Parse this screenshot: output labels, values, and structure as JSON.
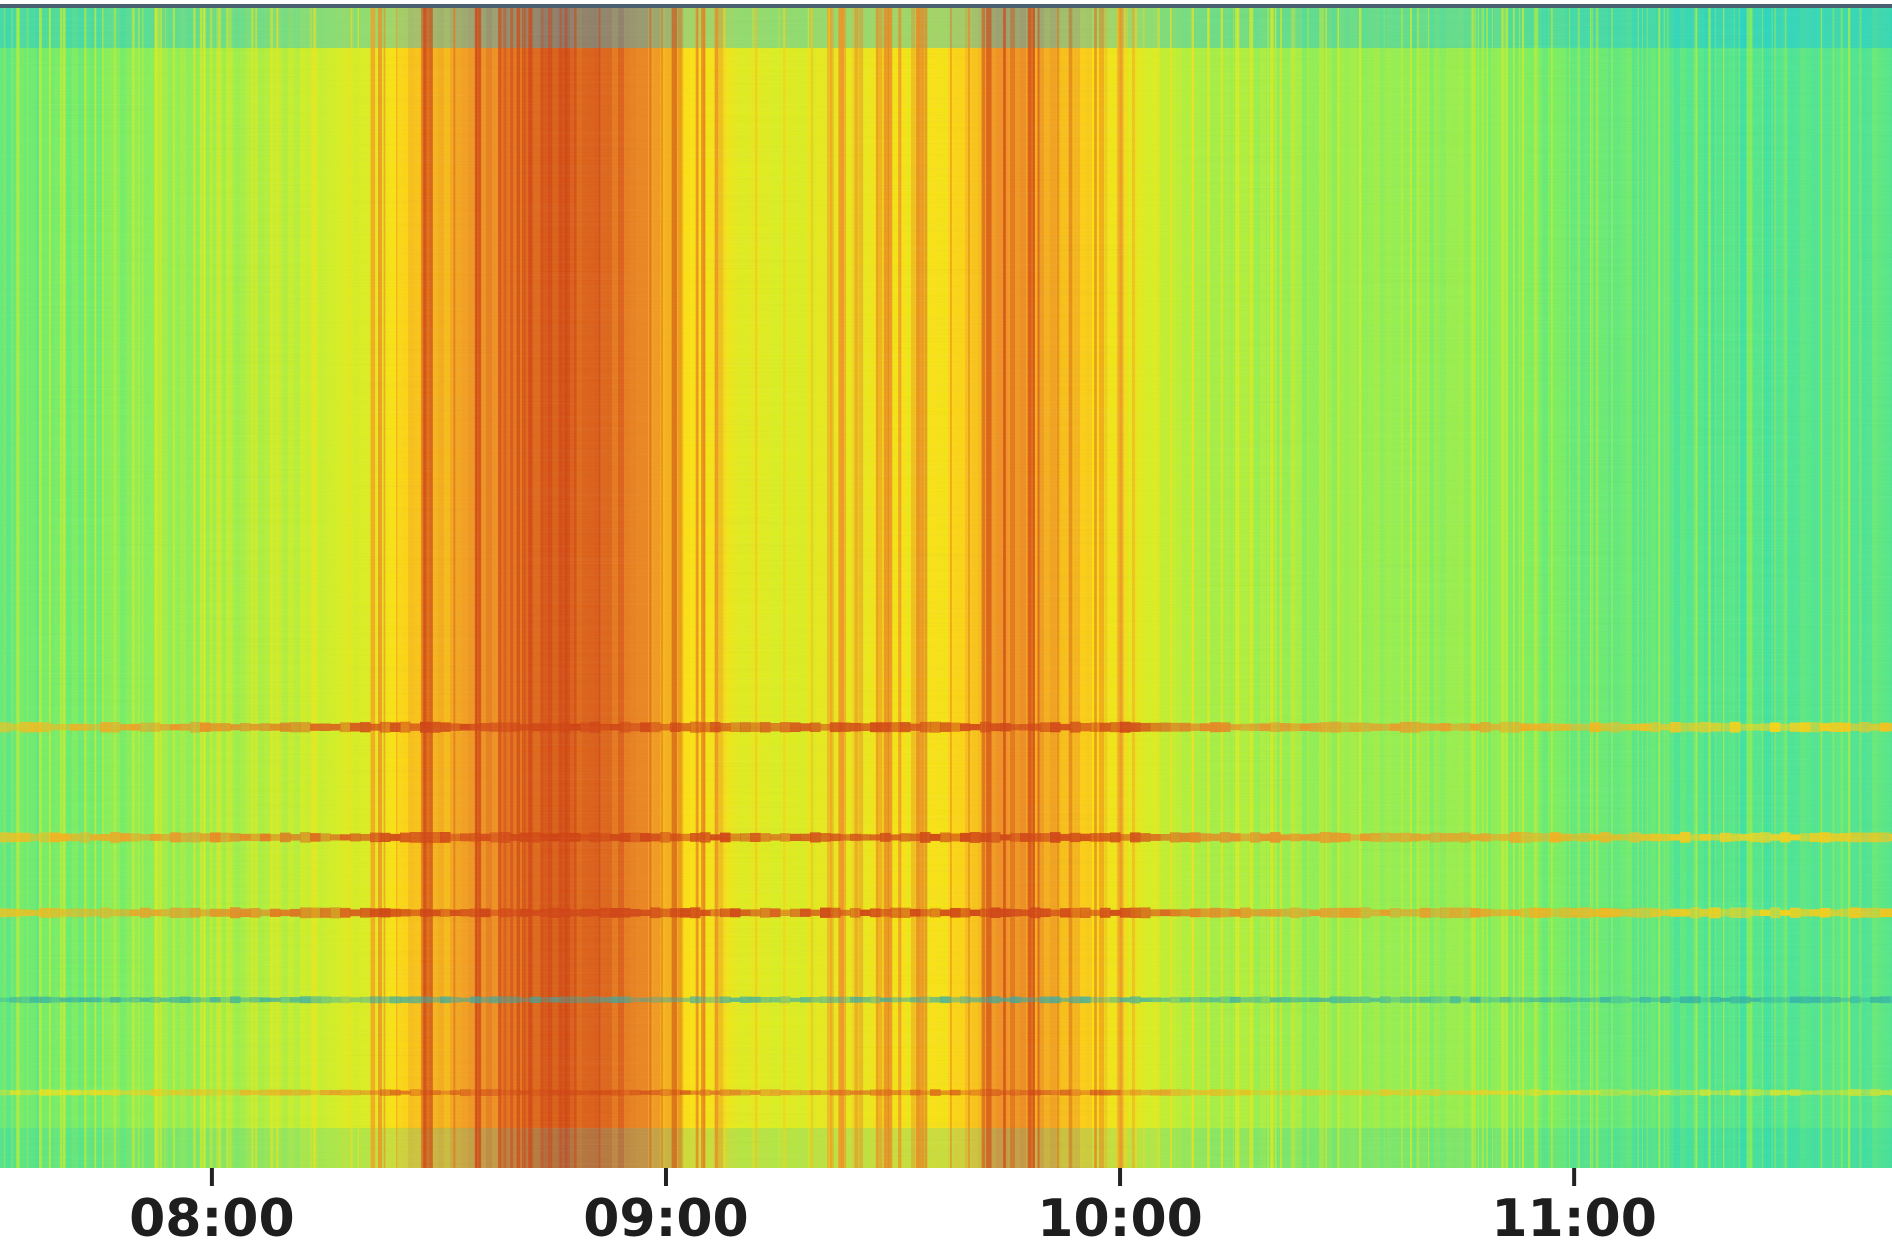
{
  "chart_data": {
    "type": "heatmap",
    "title": "",
    "xlabel": "",
    "ylabel": "",
    "x_ticks": [
      "08:00",
      "09:00",
      "10:00",
      "11:00"
    ],
    "x_range": [
      "07:32",
      "11:42"
    ],
    "colormap": [
      "#00c8ff",
      "#22dcc0",
      "#7af060",
      "#d8f020",
      "#ffe010",
      "#f09020",
      "#d04010"
    ],
    "intensity_profile": {
      "time": [
        "07:32",
        "07:45",
        "07:50",
        "08:05",
        "08:10",
        "08:20",
        "08:25",
        "08:35",
        "08:45",
        "08:55",
        "09:05",
        "09:15",
        "09:25",
        "09:35",
        "09:45",
        "09:55",
        "10:00",
        "10:10",
        "10:25",
        "10:45",
        "10:55",
        "11:05",
        "11:15",
        "11:25",
        "11:35",
        "11:42"
      ],
      "level": [
        0.28,
        0.33,
        0.36,
        0.42,
        0.46,
        0.52,
        0.7,
        0.82,
        0.95,
        0.9,
        0.62,
        0.5,
        0.6,
        0.62,
        0.84,
        0.72,
        0.58,
        0.42,
        0.38,
        0.37,
        0.32,
        0.3,
        0.26,
        0.24,
        0.26,
        0.28
      ]
    },
    "horizontal_bands": [
      {
        "frequency_fraction": 0.62,
        "type": "intense"
      },
      {
        "frequency_fraction": 0.715,
        "type": "intense"
      },
      {
        "frequency_fraction": 0.78,
        "type": "intense"
      },
      {
        "frequency_fraction": 0.855,
        "type": "weak"
      },
      {
        "frequency_fraction": 0.935,
        "type": "weak"
      }
    ],
    "grid": false,
    "legend": "none"
  }
}
